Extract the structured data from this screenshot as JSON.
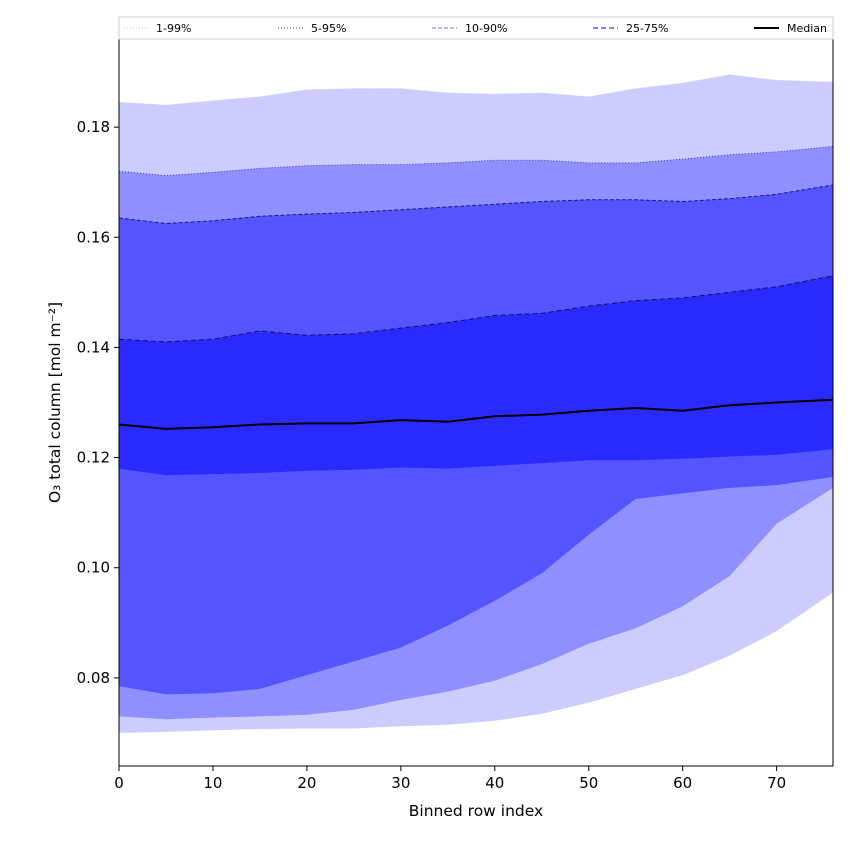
{
  "chart_data": {
    "type": "area",
    "xlabel": "Binned row index",
    "ylabel": "O₃ total column [mol m⁻²]",
    "xlim": [
      0,
      76
    ],
    "ylim": [
      0.064,
      0.196
    ],
    "xticks": [
      0,
      10,
      20,
      30,
      40,
      50,
      60,
      70
    ],
    "yticks": [
      0.08,
      0.1,
      0.12,
      0.14,
      0.16,
      0.18
    ],
    "ytick_labels": [
      "0.08",
      "0.10",
      "0.12",
      "0.14",
      "0.16",
      "0.18"
    ],
    "grid": false,
    "legend_position": "top",
    "legend": [
      {
        "label": "1-99%",
        "color": "#ccccff",
        "style": "dotted"
      },
      {
        "label": "5-95%",
        "color": "#8f8fff",
        "style": "dotted"
      },
      {
        "label": "10-90%",
        "color": "#5555ff",
        "style": "dashed"
      },
      {
        "label": "25-75%",
        "color": "#2a2aff",
        "style": "dashed"
      },
      {
        "label": "Median",
        "color": "#000000",
        "style": "solid"
      }
    ],
    "x": [
      0,
      5,
      10,
      15,
      20,
      25,
      30,
      35,
      40,
      45,
      50,
      55,
      60,
      65,
      70,
      76
    ],
    "series": {
      "p1": [
        0.07,
        0.0702,
        0.0705,
        0.0707,
        0.0708,
        0.0708,
        0.0712,
        0.0715,
        0.0722,
        0.0735,
        0.0755,
        0.078,
        0.0805,
        0.084,
        0.0885,
        0.0955
      ],
      "p5": [
        0.073,
        0.0725,
        0.0728,
        0.073,
        0.0733,
        0.0742,
        0.076,
        0.0775,
        0.0795,
        0.0825,
        0.0862,
        0.089,
        0.093,
        0.0985,
        0.108,
        0.1145
      ],
      "p10": [
        0.0785,
        0.077,
        0.0772,
        0.078,
        0.0805,
        0.083,
        0.0855,
        0.0895,
        0.094,
        0.099,
        0.106,
        0.1125,
        0.1135,
        0.1145,
        0.115,
        0.1165
      ],
      "p25": [
        0.118,
        0.1168,
        0.117,
        0.1172,
        0.1176,
        0.1178,
        0.1182,
        0.118,
        0.1185,
        0.119,
        0.1195,
        0.1195,
        0.1198,
        0.1202,
        0.1205,
        0.1215
      ],
      "p50": [
        0.126,
        0.1252,
        0.1255,
        0.126,
        0.1262,
        0.1262,
        0.1268,
        0.1265,
        0.1275,
        0.1278,
        0.1285,
        0.129,
        0.1285,
        0.1295,
        0.13,
        0.1305
      ],
      "p75": [
        0.1415,
        0.141,
        0.1415,
        0.143,
        0.1422,
        0.1425,
        0.1435,
        0.1445,
        0.1458,
        0.1462,
        0.1475,
        0.1485,
        0.149,
        0.15,
        0.151,
        0.153
      ],
      "p90": [
        0.1635,
        0.1625,
        0.163,
        0.1638,
        0.1642,
        0.1645,
        0.165,
        0.1655,
        0.166,
        0.1665,
        0.1668,
        0.1668,
        0.1665,
        0.167,
        0.1678,
        0.1695
      ],
      "p95": [
        0.172,
        0.1712,
        0.1718,
        0.1725,
        0.173,
        0.1732,
        0.1732,
        0.1735,
        0.174,
        0.174,
        0.1735,
        0.1735,
        0.1742,
        0.175,
        0.1755,
        0.1765
      ],
      "p99": [
        0.1845,
        0.184,
        0.1848,
        0.1855,
        0.1868,
        0.187,
        0.187,
        0.1862,
        0.186,
        0.1862,
        0.1855,
        0.187,
        0.188,
        0.1895,
        0.1885,
        0.1882
      ]
    }
  }
}
